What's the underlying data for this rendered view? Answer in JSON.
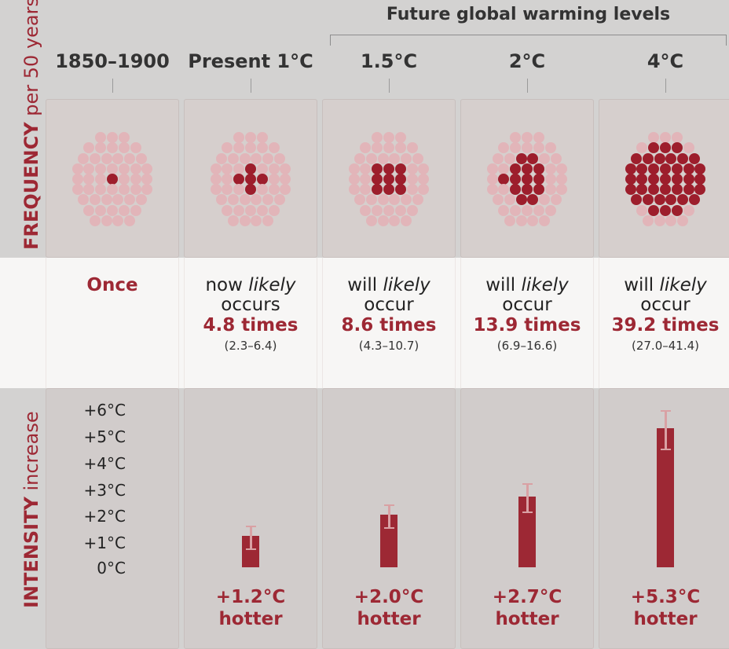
{
  "chart_data": {
    "type": "bar",
    "panel_title": "Future global warming levels",
    "categories": [
      "1850–1900",
      "Present 1°C",
      "1.5°C",
      "2°C",
      "4°C"
    ],
    "frequency_axis_label": {
      "main": "FREQUENCY",
      "sub": "per 50 years"
    },
    "intensity_axis_label": {
      "main": "INTENSITY",
      "sub": "increase"
    },
    "intensity_ticks": [
      "+6°C",
      "+5°C",
      "+4°C",
      "+3°C",
      "+2°C",
      "+1°C",
      "0°C"
    ],
    "ylim": [
      0,
      6
    ],
    "frequency": [
      {
        "times": 1,
        "line1": "Once",
        "line2": "",
        "times_label": "",
        "range": ""
      },
      {
        "times": 4.8,
        "line1": "now likely",
        "line2": "occurs",
        "times_label": "4.8 times",
        "range": "(2.3–6.4)"
      },
      {
        "times": 8.6,
        "line1": "will likely",
        "line2": "occur",
        "times_label": "8.6 times",
        "range": "(4.3–10.7)"
      },
      {
        "times": 13.9,
        "line1": "will likely",
        "line2": "occur",
        "times_label": "13.9 times",
        "range": "(6.9–16.6)"
      },
      {
        "times": 39.2,
        "line1": "will likely",
        "line2": "occur",
        "times_label": "39.2 times",
        "range": "(27.0–41.4)"
      }
    ],
    "intensity": [
      {
        "value": null,
        "err_low": null,
        "err_high": null,
        "label": "",
        "suffix": ""
      },
      {
        "value": 1.2,
        "err_low": 0.7,
        "err_high": 1.6,
        "label": "+1.2°C",
        "suffix": "hotter"
      },
      {
        "value": 2.0,
        "err_low": 1.5,
        "err_high": 2.4,
        "label": "+2.0°C",
        "suffix": "hotter"
      },
      {
        "value": 2.7,
        "err_low": 2.1,
        "err_high": 3.2,
        "label": "+2.7°C",
        "suffix": "hotter"
      },
      {
        "value": 5.3,
        "err_low": 4.5,
        "err_high": 6.0,
        "label": "+5.3°C",
        "suffix": "hotter"
      }
    ],
    "dots_total": 50,
    "dots_highlighted": [
      1,
      5,
      9,
      14,
      39
    ]
  },
  "colors": {
    "accent": "#9d2834",
    "dot_light": "#e2b5b9",
    "dot_dark": "#9d1e2c",
    "background": "#d3d2d1",
    "band": "#f7f6f5"
  }
}
